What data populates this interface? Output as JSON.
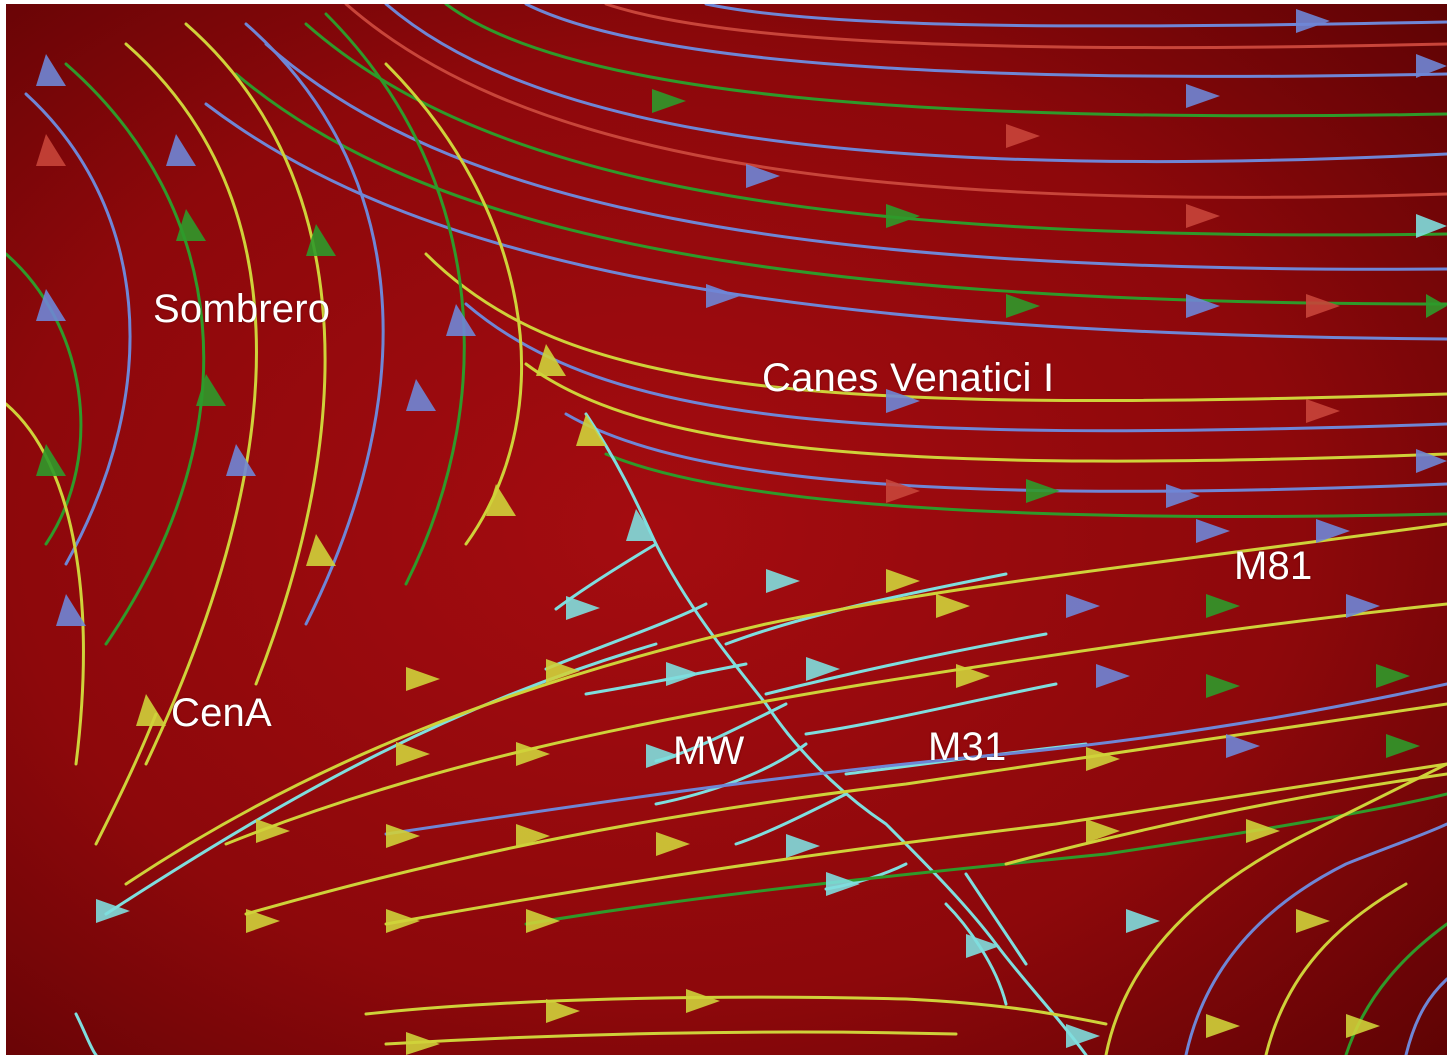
{
  "labels": {
    "sombrero": "Sombrero",
    "canes_venatici": "Canes Venatici I",
    "m81": "M81",
    "cena": "CenA",
    "mw": "MW",
    "m31": "M31"
  },
  "colors": {
    "background_center": "#a40c10",
    "background_edge": "#5e0304",
    "cyan": "#7fdede",
    "yellow": "#cfd23a",
    "green": "#2f9a2a",
    "blue": "#6f86d6",
    "red": "#c8453a"
  }
}
